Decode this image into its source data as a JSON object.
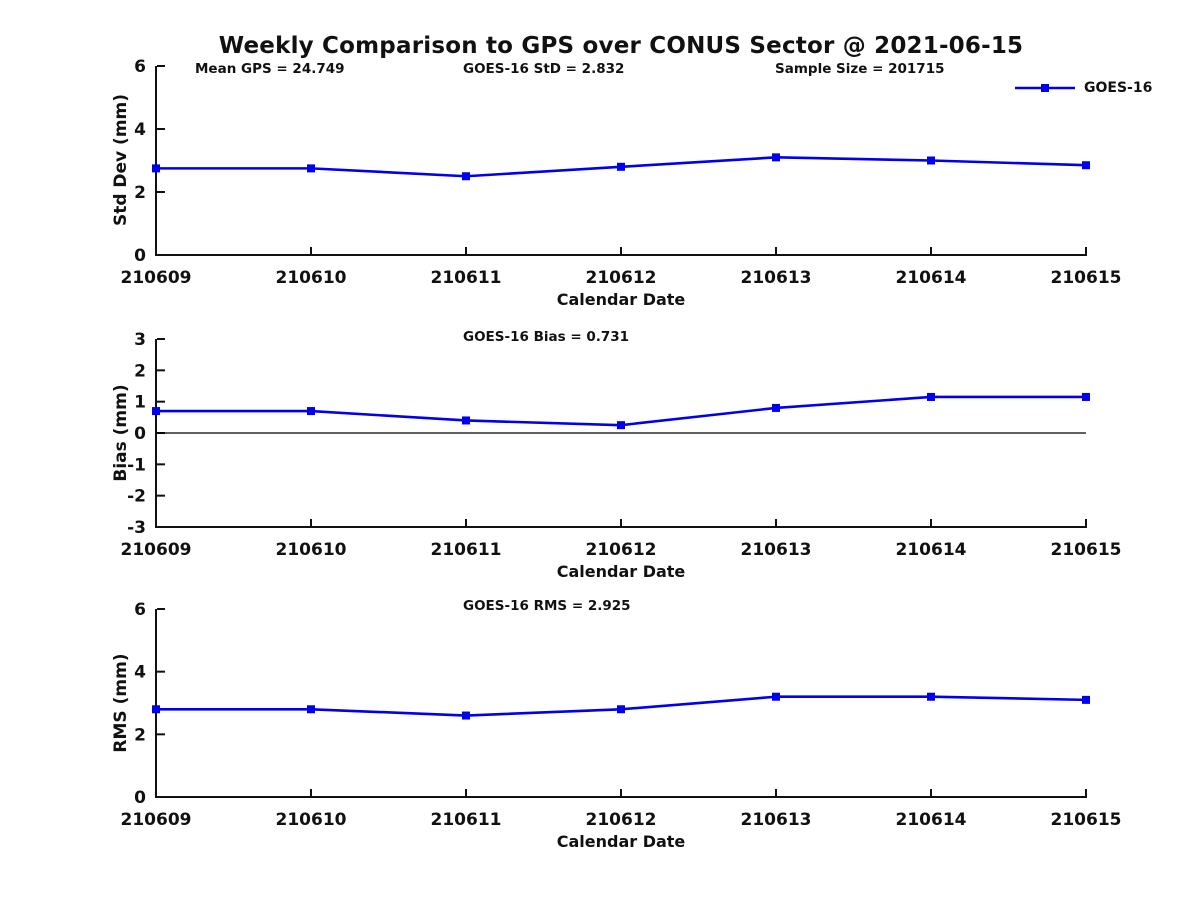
{
  "page": {
    "background": "#ffffff",
    "text_color": "#111111",
    "axis_color": "#111111"
  },
  "header": {
    "title": "Weekly Comparison to GPS over CONUS Sector @ 2021-06-15"
  },
  "annotations": {
    "mean_gps": "Mean GPS = 24.749",
    "std": "GOES-16 StD = 2.832",
    "sample_size": "Sample Size = 201715"
  },
  "legend": {
    "label": "GOES-16",
    "line_color": "#0000ee",
    "marker": "square"
  },
  "chart_data": [
    {
      "type": "line",
      "title": "",
      "ylabel": "Std Dev (mm)",
      "xlabel": "Calendar Date",
      "categories": [
        "210609",
        "210610",
        "210611",
        "210612",
        "210613",
        "210614",
        "210615"
      ],
      "series": [
        {
          "name": "GOES-16",
          "color": "#0000ee",
          "marker": "square",
          "values": [
            2.75,
            2.75,
            2.5,
            2.8,
            3.1,
            3.0,
            2.85
          ]
        }
      ],
      "ylim": [
        0,
        6
      ],
      "yticks": [
        0,
        2,
        4,
        6
      ],
      "zero_line": false,
      "grid": false,
      "legend_position": "top-right-outside"
    },
    {
      "type": "line",
      "title": "GOES-16 Bias  = 0.731",
      "ylabel": "Bias (mm)",
      "xlabel": "Calendar Date",
      "categories": [
        "210609",
        "210610",
        "210611",
        "210612",
        "210613",
        "210614",
        "210615"
      ],
      "series": [
        {
          "name": "GOES-16",
          "color": "#0000ee",
          "marker": "square",
          "values": [
            0.7,
            0.7,
            0.4,
            0.25,
            0.8,
            1.15,
            1.15
          ]
        }
      ],
      "ylim": [
        -3,
        3
      ],
      "yticks": [
        -3,
        -2,
        -1,
        0,
        1,
        2,
        3
      ],
      "zero_line": true,
      "grid": false
    },
    {
      "type": "line",
      "title": "GOES-16 RMS = 2.925",
      "ylabel": "RMS (mm)",
      "xlabel": "Calendar Date",
      "categories": [
        "210609",
        "210610",
        "210611",
        "210612",
        "210613",
        "210614",
        "210615"
      ],
      "series": [
        {
          "name": "GOES-16",
          "color": "#0000ee",
          "marker": "square",
          "values": [
            2.8,
            2.8,
            2.6,
            2.8,
            3.2,
            3.2,
            3.1
          ]
        }
      ],
      "ylim": [
        0,
        6
      ],
      "yticks": [
        0,
        2,
        4,
        6
      ],
      "zero_line": false,
      "grid": false
    }
  ]
}
